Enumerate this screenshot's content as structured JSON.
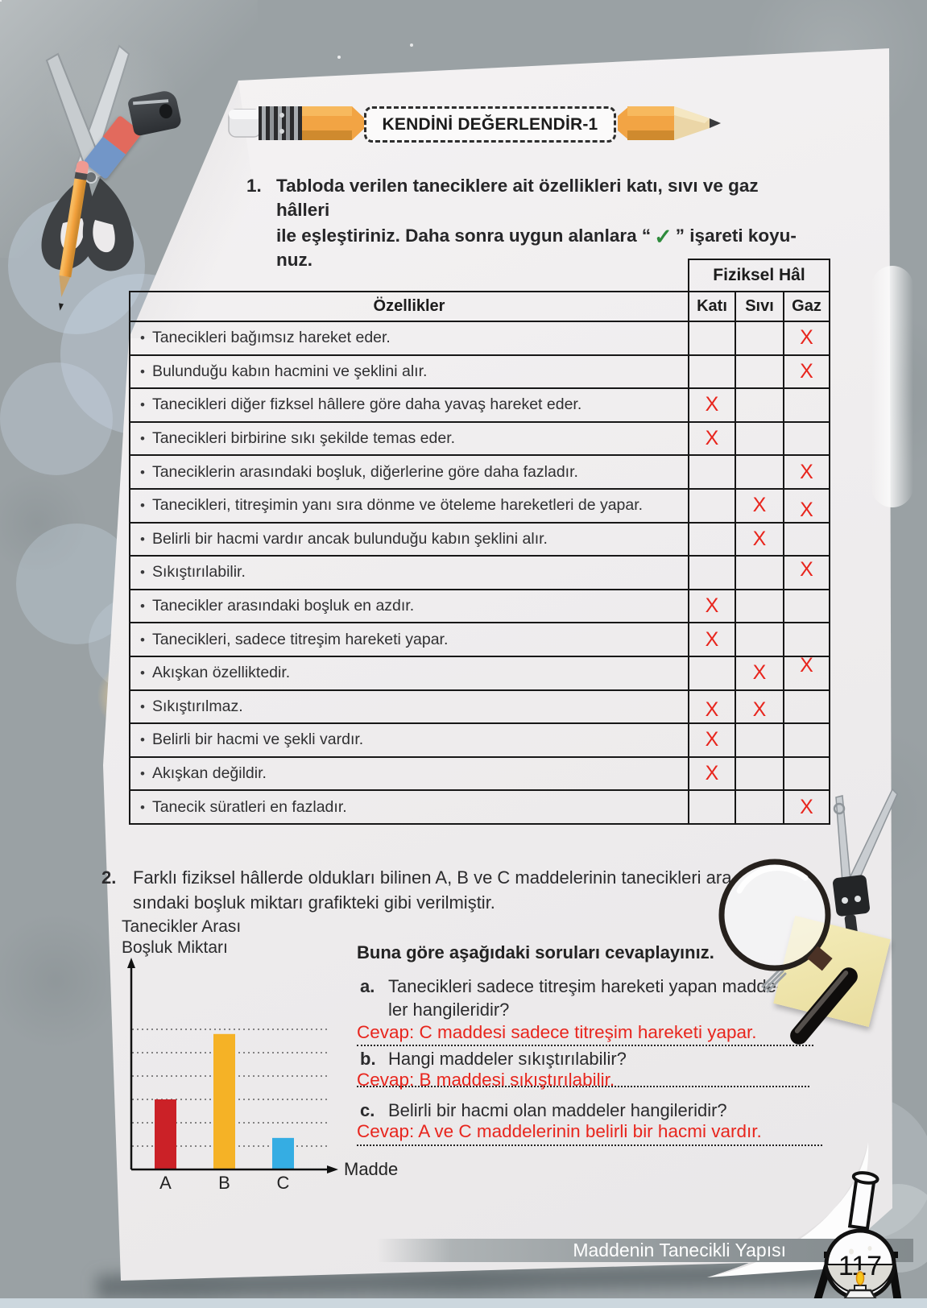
{
  "page": {
    "banner_title": "KENDİNİ DEĞERLENDİR-1",
    "footer_text": "Maddenin Tanecikli Yapısı",
    "page_number": "117"
  },
  "colors": {
    "mark_red": "#e8251d",
    "answer_red": "#e8251d",
    "check_green": "#2e8b3c",
    "footer_text": "#ffffff"
  },
  "question1": {
    "number": "1.",
    "line1": "Tabloda verilen taneciklere ait özellikleri katı, sıvı ve gaz hâlleri",
    "line2_before": "ile eşleştiriniz. Daha sonra uygun alanlara “",
    "check_symbol": "✓",
    "line2_after": "” işareti koyu-",
    "line3": "nuz.",
    "table": {
      "group_header": "Fiziksel Hâl",
      "col_properties": "Özellikler",
      "col_states": [
        "Katı",
        "Sıvı",
        "Gaz"
      ],
      "mark_symbol": "X",
      "rows": [
        {
          "text": "Tanecikleri bağımsız hareket eder.",
          "marks": [
            "",
            "",
            "X"
          ]
        },
        {
          "text": "Bulunduğu kabın hacmini ve şeklini alır.",
          "marks": [
            "",
            "",
            "X"
          ]
        },
        {
          "text": "Tanecikleri diğer fizksel hâllere göre daha yavaş hareket eder.",
          "marks": [
            "X",
            "",
            ""
          ]
        },
        {
          "text": "Tanecikleri birbirine sıkı şekilde temas eder.",
          "marks": [
            "X",
            "",
            ""
          ]
        },
        {
          "text": "Taneciklerin arasındaki boşluk, diğerlerine göre daha fazladır.",
          "marks": [
            "",
            "",
            "X"
          ]
        },
        {
          "text": "Tanecikleri, titreşimin yanı sıra dönme ve öteleme hareketleri de yapar.",
          "marks": [
            "",
            "X",
            "X"
          ]
        },
        {
          "text": "Belirli bir hacmi vardır ancak bulunduğu kabın şeklini alır.",
          "marks": [
            "",
            "X",
            ""
          ]
        },
        {
          "text": "Sıkıştırılabilir.",
          "marks": [
            "",
            "",
            "X"
          ]
        },
        {
          "text": "Tanecikler arasındaki boşluk en azdır.",
          "marks": [
            "X",
            "",
            ""
          ]
        },
        {
          "text": "Tanecikleri, sadece titreşim hareketi yapar.",
          "marks": [
            "X",
            "",
            ""
          ]
        },
        {
          "text": "Akışkan özelliktedir.",
          "marks": [
            "",
            "X",
            "X"
          ]
        },
        {
          "text": "Sıkıştırılmaz.",
          "marks": [
            "X",
            "X",
            ""
          ]
        },
        {
          "text": "Belirli bir hacmi ve şekli vardır.",
          "marks": [
            "X",
            "",
            ""
          ]
        },
        {
          "text": "Akışkan değildir.",
          "marks": [
            "X",
            "",
            ""
          ]
        },
        {
          "text": "Tanecik süratleri en fazladır.",
          "marks": [
            "",
            "",
            "X"
          ]
        }
      ]
    }
  },
  "question2": {
    "number": "2.",
    "line1": "Farklı fiziksel hâllerde oldukları bilinen A, B ve C maddelerinin tanecikleri ara-",
    "line2": "sındaki boşluk miktarı grafikteki gibi verilmiştir.",
    "prompt": "Buna göre aşağıdaki soruları cevaplayınız.",
    "items": [
      {
        "label": "a.",
        "question_lines": [
          "Tanecikleri sadece titreşim hareketi yapan madde-",
          "ler hangileridir?"
        ],
        "answer": "Cevap: C maddesi sadece titreşim hareketi yapar."
      },
      {
        "label": "b.",
        "question_lines": [
          "Hangi maddeler sıkıştırılabilir?"
        ],
        "answer": "Cevap: B maddesi sıkıştırılabilir."
      },
      {
        "label": "c.",
        "question_lines": [
          "Belirli bir hacmi olan maddeler hangileridir?"
        ],
        "answer": "Cevap: A ve C maddelerinin belirli bir hacmi vardır."
      }
    ]
  },
  "chart_data": {
    "type": "bar",
    "categories": [
      "A",
      "B",
      "C"
    ],
    "values": [
      3,
      5.8,
      1.35
    ],
    "title": "",
    "xlabel": "Madde",
    "ylabel": "Tanecikler Arası Boşluk Miktarı",
    "ylim": [
      0,
      6.5
    ],
    "gridlines": 6,
    "grid_style": "dotted",
    "legend": "none",
    "bar_colors": [
      "#cb2127",
      "#f5b226",
      "#35ade3"
    ]
  }
}
